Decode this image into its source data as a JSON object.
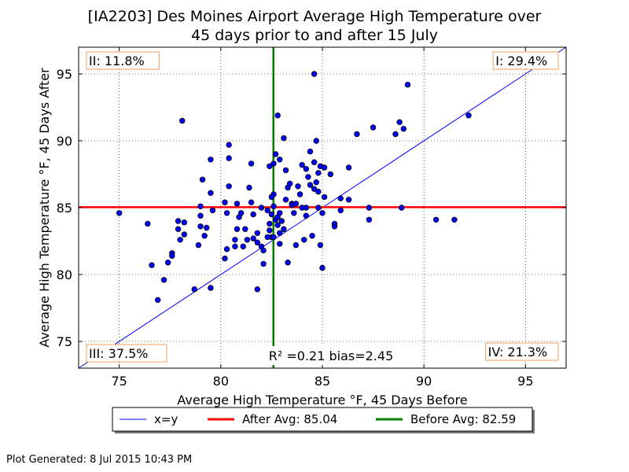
{
  "chart_data": {
    "type": "scatter",
    "title_line1": "[IA2203] Des Moines Airport Average High Temperature over",
    "title_line2": "45 days prior to and after 15 July",
    "xlabel": "Average High Temperature °F, 45 Days Before",
    "ylabel": "Average High Temperature °F, 45 Days After",
    "xlim": [
      73,
      97
    ],
    "ylim": [
      73,
      97
    ],
    "xticks": [
      75,
      80,
      85,
      90,
      95
    ],
    "yticks": [
      75,
      80,
      85,
      90,
      95
    ],
    "grid": true,
    "after_avg": 85.04,
    "before_avg": 82.59,
    "quadrants": {
      "I": "I: 29.4%",
      "II": "II: 11.8%",
      "III": "III: 37.5%",
      "IV": "IV: 21.3%"
    },
    "stats_text": "R² =0.21 bias=2.45",
    "legend": {
      "position": "below",
      "items": [
        {
          "label": "x=y",
          "color": "#0000ff"
        },
        {
          "label": "After Avg: 85.04",
          "color": "#ff0000"
        },
        {
          "label": "Before Avg: 82.59",
          "color": "#008000"
        }
      ]
    },
    "colors": {
      "point_fill": "#0000ff",
      "point_edge": "#000000",
      "xy_line": "#0000ff",
      "after_line": "#ff0000",
      "before_line": "#008000"
    },
    "points": [
      [
        75.0,
        84.6
      ],
      [
        76.4,
        83.8
      ],
      [
        76.6,
        80.7
      ],
      [
        76.9,
        78.1
      ],
      [
        77.2,
        79.6
      ],
      [
        77.4,
        80.9
      ],
      [
        77.6,
        81.6
      ],
      [
        77.6,
        81.4
      ],
      [
        77.9,
        84.0
      ],
      [
        77.9,
        83.4
      ],
      [
        78.1,
        91.5
      ],
      [
        78.0,
        82.6
      ],
      [
        78.2,
        83.0
      ],
      [
        78.2,
        83.9
      ],
      [
        78.7,
        78.9
      ],
      [
        78.9,
        82.2
      ],
      [
        79.0,
        85.1
      ],
      [
        79.0,
        84.4
      ],
      [
        79.0,
        83.6
      ],
      [
        79.1,
        87.1
      ],
      [
        79.2,
        82.9
      ],
      [
        79.3,
        83.5
      ],
      [
        79.5,
        88.6
      ],
      [
        79.5,
        86.1
      ],
      [
        79.5,
        79.0
      ],
      [
        79.6,
        84.8
      ],
      [
        80.2,
        85.4
      ],
      [
        80.2,
        81.2
      ],
      [
        80.3,
        81.9
      ],
      [
        80.3,
        84.6
      ],
      [
        80.4,
        86.6
      ],
      [
        80.4,
        88.7
      ],
      [
        80.4,
        89.7
      ],
      [
        80.7,
        82.6
      ],
      [
        80.7,
        82.1
      ],
      [
        80.8,
        85.3
      ],
      [
        80.8,
        83.4
      ],
      [
        80.9,
        84.3
      ],
      [
        81.0,
        84.6
      ],
      [
        81.1,
        82.1
      ],
      [
        81.2,
        83.4
      ],
      [
        81.3,
        82.6
      ],
      [
        81.4,
        86.5
      ],
      [
        81.5,
        85.4
      ],
      [
        81.5,
        88.3
      ],
      [
        81.6,
        84.5
      ],
      [
        81.6,
        82.7
      ],
      [
        81.8,
        83.1
      ],
      [
        81.8,
        82.4
      ],
      [
        81.8,
        78.9
      ],
      [
        82.0,
        85.0
      ],
      [
        82.0,
        82.1
      ],
      [
        82.1,
        81.8
      ],
      [
        82.1,
        80.8
      ],
      [
        82.3,
        84.8
      ],
      [
        82.4,
        83.8
      ],
      [
        82.4,
        83.3
      ],
      [
        82.5,
        82.8
      ],
      [
        82.6,
        85.1
      ],
      [
        82.6,
        86.0
      ],
      [
        82.6,
        88.3
      ],
      [
        82.7,
        84.1
      ],
      [
        82.8,
        83.7
      ],
      [
        82.9,
        83.1
      ],
      [
        82.9,
        82.3
      ],
      [
        82.5,
        84.5
      ],
      [
        82.7,
        89.0
      ],
      [
        82.8,
        91.9
      ],
      [
        82.9,
        88.6
      ],
      [
        82.5,
        85.8
      ],
      [
        82.4,
        88.1
      ],
      [
        82.6,
        82.8
      ],
      [
        82.3,
        82.8
      ],
      [
        82.8,
        84.3
      ],
      [
        82.9,
        84.6
      ],
      [
        83.0,
        84.0
      ],
      [
        83.1,
        90.2
      ],
      [
        83.1,
        83.4
      ],
      [
        83.2,
        87.8
      ],
      [
        83.2,
        85.6
      ],
      [
        83.3,
        86.5
      ],
      [
        83.3,
        80.9
      ],
      [
        83.4,
        86.8
      ],
      [
        83.5,
        85.3
      ],
      [
        83.5,
        85.2
      ],
      [
        83.6,
        84.6
      ],
      [
        83.7,
        82.2
      ],
      [
        83.7,
        85.3
      ],
      [
        83.8,
        86.6
      ],
      [
        83.9,
        86.0
      ],
      [
        84.0,
        85.0
      ],
      [
        84.0,
        88.2
      ],
      [
        84.1,
        82.6
      ],
      [
        84.2,
        84.4
      ],
      [
        84.2,
        85.0
      ],
      [
        84.2,
        87.9
      ],
      [
        84.3,
        87.3
      ],
      [
        84.4,
        86.7
      ],
      [
        84.4,
        89.2
      ],
      [
        84.5,
        82.9
      ],
      [
        84.6,
        88.4
      ],
      [
        84.6,
        86.4
      ],
      [
        84.6,
        95.0
      ],
      [
        84.7,
        90.0
      ],
      [
        84.7,
        86.9
      ],
      [
        84.8,
        86.2
      ],
      [
        84.8,
        87.6
      ],
      [
        84.8,
        85.0
      ],
      [
        84.9,
        82.2
      ],
      [
        84.9,
        88.1
      ],
      [
        85.0,
        80.5
      ],
      [
        85.0,
        84.6
      ],
      [
        85.1,
        85.8
      ],
      [
        85.1,
        88.0
      ],
      [
        85.4,
        87.5
      ],
      [
        85.6,
        83.8
      ],
      [
        85.6,
        83.6
      ],
      [
        85.9,
        85.7
      ],
      [
        85.9,
        84.8
      ],
      [
        86.3,
        85.6
      ],
      [
        86.3,
        88.0
      ],
      [
        86.7,
        90.5
      ],
      [
        87.3,
        84.1
      ],
      [
        87.3,
        85.0
      ],
      [
        87.5,
        91.0
      ],
      [
        88.6,
        90.5
      ],
      [
        88.8,
        91.4
      ],
      [
        88.9,
        85.0
      ],
      [
        89.0,
        90.9
      ],
      [
        89.2,
        94.2
      ],
      [
        90.6,
        84.1
      ],
      [
        91.5,
        84.1
      ],
      [
        92.2,
        91.9
      ]
    ]
  },
  "footer": "Plot Generated: 8 Jul 2015 10:43 PM"
}
